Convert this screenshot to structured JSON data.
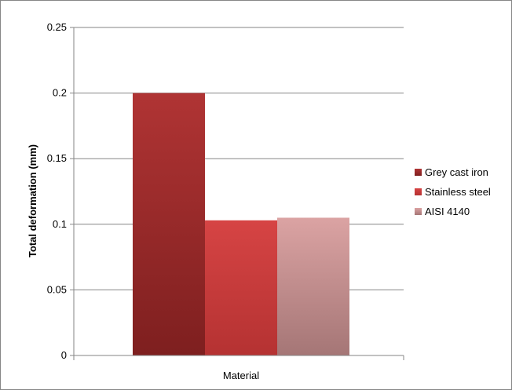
{
  "chart_data": {
    "type": "bar",
    "categories": [
      "Material"
    ],
    "series": [
      {
        "name": "Grey cast iron",
        "values": [
          0.2
        ],
        "color_top": "#b03434",
        "color_bottom": "#7e1f1f"
      },
      {
        "name": "Stainless steel",
        "values": [
          0.103
        ],
        "color_top": "#d64444",
        "color_bottom": "#b53232"
      },
      {
        "name": "AISI 4140",
        "values": [
          0.105
        ],
        "color_top": "#dba3a3",
        "color_bottom": "#a57676"
      }
    ],
    "yticks": [
      "0",
      "0.05",
      "0.1",
      "0.15",
      "0.2",
      "0.25"
    ],
    "ylim": [
      0,
      0.25
    ],
    "ylabel": "Total deformation (mm)",
    "grid": true,
    "legend_position": "right"
  }
}
